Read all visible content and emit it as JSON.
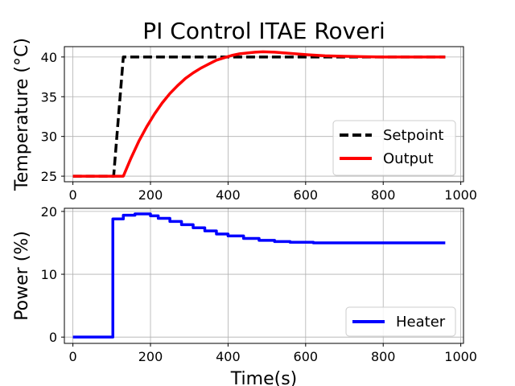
{
  "chart_data": [
    {
      "type": "line",
      "title": "PI Control ITAE Roveri",
      "xlabel": "",
      "ylabel": "Temperature (°C)",
      "xlim": [
        -22,
        1007
      ],
      "ylim": [
        24.3,
        41.3
      ],
      "xticks": [
        0,
        200,
        400,
        600,
        800,
        1000
      ],
      "yticks": [
        25,
        30,
        35,
        40
      ],
      "grid": true,
      "legend": "lower-right",
      "series": [
        {
          "name": "Setpoint",
          "color": "#000000",
          "style": "dashed",
          "x": [
            0,
            105,
            130,
            960
          ],
          "y": [
            25,
            25,
            40,
            40
          ]
        },
        {
          "name": "Output",
          "color": "#ff0000",
          "style": "solid",
          "x": [
            0,
            130,
            150,
            170,
            190,
            210,
            230,
            250,
            270,
            290,
            310,
            330,
            350,
            370,
            390,
            410,
            430,
            450,
            470,
            490,
            520,
            560,
            600,
            650,
            700,
            750,
            800,
            850,
            900,
            960
          ],
          "y": [
            25,
            25,
            27.3,
            29.4,
            31.2,
            32.8,
            34.2,
            35.4,
            36.4,
            37.3,
            38.0,
            38.6,
            39.1,
            39.6,
            39.9,
            40.2,
            40.4,
            40.5,
            40.6,
            40.65,
            40.6,
            40.45,
            40.3,
            40.15,
            40.08,
            40.03,
            40.0,
            40.0,
            40.0,
            40.0
          ]
        }
      ]
    },
    {
      "type": "line",
      "title": "",
      "xlabel": "Time(s)",
      "ylabel": "Power (%)",
      "xlim": [
        -22,
        1007
      ],
      "ylim": [
        -1,
        20.5
      ],
      "xticks": [
        0,
        200,
        400,
        600,
        800,
        1000
      ],
      "yticks": [
        0,
        10,
        20
      ],
      "grid": true,
      "legend": "lower-right",
      "series": [
        {
          "name": "Heater",
          "color": "#0000ff",
          "style": "steps-post",
          "x": [
            0,
            103,
            130,
            160,
            200,
            220,
            250,
            280,
            310,
            340,
            370,
            400,
            440,
            480,
            520,
            560,
            620,
            960
          ],
          "y": [
            0,
            18.8,
            19.4,
            19.6,
            19.3,
            18.9,
            18.4,
            17.9,
            17.4,
            16.9,
            16.4,
            16.1,
            15.7,
            15.4,
            15.2,
            15.1,
            15.0,
            15.0
          ]
        }
      ]
    }
  ]
}
